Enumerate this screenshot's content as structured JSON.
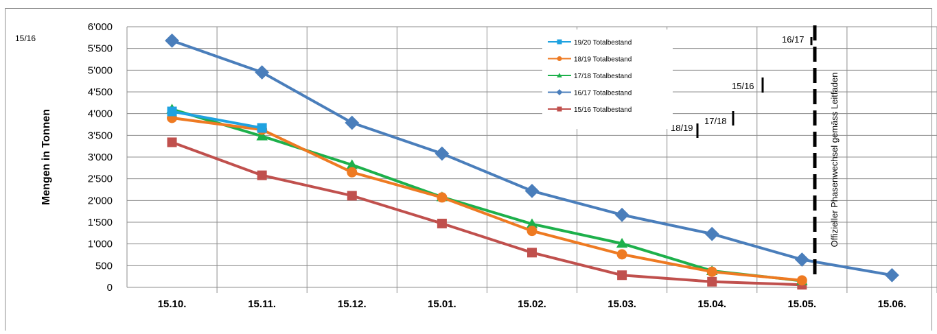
{
  "chart_data": {
    "type": "line",
    "ylabel": "Mengen in Tonnen",
    "ylim": [
      0,
      6000
    ],
    "yticks": [
      0,
      500,
      1000,
      1500,
      2000,
      2500,
      3000,
      3500,
      4000,
      4500,
      5000,
      5500,
      6000
    ],
    "ytick_labels": [
      "0",
      "500",
      "1'000",
      "1'500",
      "2'000",
      "2'500",
      "3'000",
      "3'500",
      "4'000",
      "4'500",
      "5'000",
      "5'500",
      "6'000"
    ],
    "categories": [
      "15.10.",
      "15.11.",
      "15.12.",
      "15.01.",
      "15.02.",
      "15.03.",
      "15.04.",
      "15.05.",
      "15.06."
    ],
    "grid": true,
    "legend_position": "top-center",
    "series": [
      {
        "name": "19/20 Totalbestand",
        "color": "#1fa2e0",
        "marker": "square",
        "values": [
          4050,
          3670,
          null,
          null,
          null,
          null,
          null,
          null,
          null
        ]
      },
      {
        "name": "18/19 Totalbestand",
        "color": "#ee7a22",
        "marker": "circle",
        "values": [
          3900,
          3630,
          2650,
          2070,
          1300,
          760,
          360,
          160,
          null
        ]
      },
      {
        "name": "17/18 Totalbestand",
        "color": "#1db04b",
        "marker": "triangle",
        "values": [
          4100,
          3480,
          2820,
          2080,
          1460,
          1010,
          380,
          150,
          null
        ]
      },
      {
        "name": "16/17 Totalbestand",
        "color": "#4a7ebb",
        "marker": "diamond",
        "values": [
          5680,
          4950,
          3790,
          3080,
          2220,
          1670,
          1230,
          640,
          280
        ]
      },
      {
        "name": "15/16 Totalbestand",
        "color": "#c0504d",
        "marker": "square",
        "values": [
          3340,
          2580,
          2110,
          1470,
          800,
          280,
          130,
          60,
          null
        ]
      }
    ],
    "annotations": {
      "phase_line_label": "Offizieller Phasenwechsel gemäss Leitfaden",
      "markers": [
        {
          "text": "16/17",
          "x_category_index": 7,
          "y": 5680
        },
        {
          "text": "15/16",
          "x_category_index": 6.52,
          "y": 4600
        },
        {
          "text": "17/18",
          "x_category_index": 6.2,
          "y": 3800
        },
        {
          "text": "18/19",
          "x_category_index": 5.85,
          "y": 3500
        }
      ],
      "corner_label": "15/16"
    }
  }
}
